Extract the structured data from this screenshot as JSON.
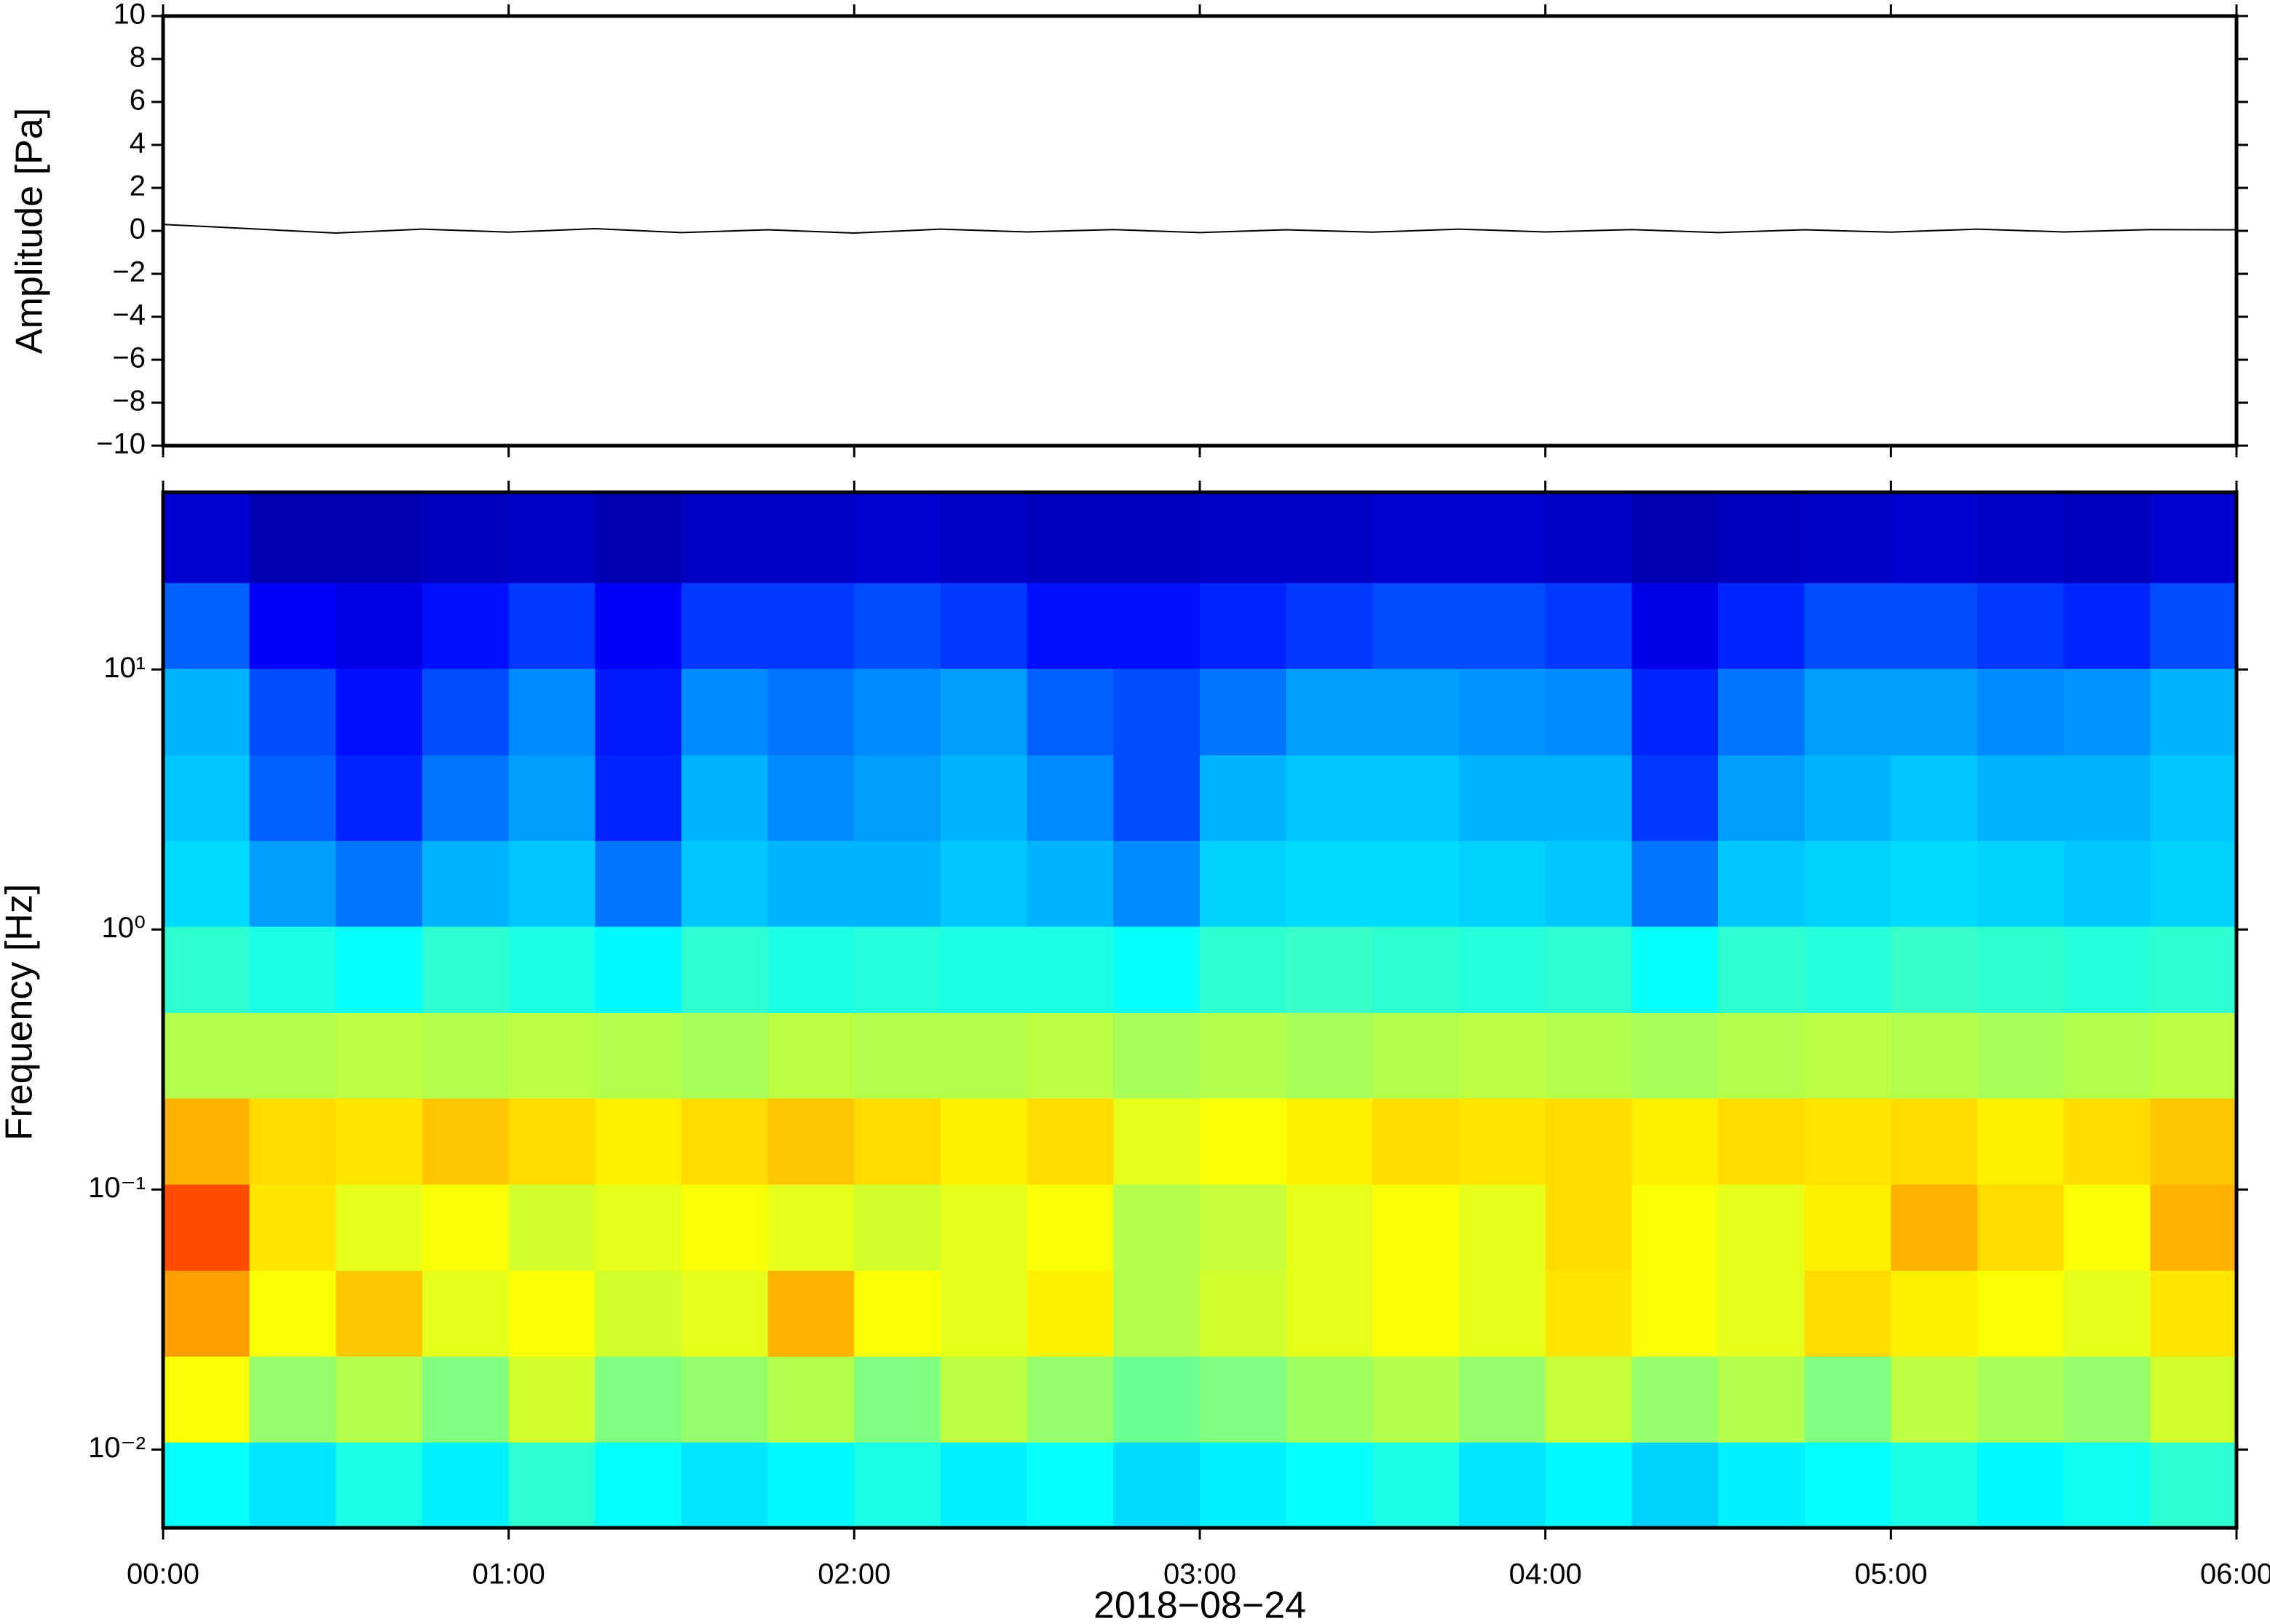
{
  "chart_data": [
    {
      "type": "line",
      "ylabel": "Amplitude [Pa]",
      "x": [
        0,
        0.25,
        0.5,
        0.75,
        1,
        1.25,
        1.5,
        1.75,
        2,
        2.25,
        2.5,
        2.75,
        3,
        3.25,
        3.5,
        3.75,
        4,
        4.25,
        4.5,
        4.75,
        5,
        5.25,
        5.5,
        5.75,
        6
      ],
      "series": [
        {
          "color": "#000000",
          "values": [
            0.3,
            0.1,
            -0.1,
            0.08,
            -0.06,
            0.1,
            -0.08,
            0.05,
            -0.1,
            0.08,
            -0.05,
            0.06,
            -0.08,
            0.05,
            -0.06,
            0.08,
            -0.05,
            0.06,
            -0.08,
            0.05,
            -0.06,
            0.08,
            -0.05,
            0.06,
            0.05
          ]
        }
      ],
      "xlim": [
        0,
        6
      ],
      "xticks": [
        {
          "value": 0,
          "label": "00:00"
        },
        {
          "value": 1,
          "label": "01:00"
        },
        {
          "value": 2,
          "label": "02:00"
        },
        {
          "value": 3,
          "label": "03:00"
        },
        {
          "value": 4,
          "label": "04:00"
        },
        {
          "value": 5,
          "label": "05:00"
        },
        {
          "value": 6,
          "label": "06:00"
        }
      ],
      "ylim": [
        -10,
        10
      ],
      "yticks": [
        {
          "value": -10,
          "label": "−10"
        },
        {
          "value": -8,
          "label": "−8"
        },
        {
          "value": -6,
          "label": "−6"
        },
        {
          "value": -4,
          "label": "−4"
        },
        {
          "value": -2,
          "label": "−2"
        },
        0,
        2,
        4,
        6,
        8,
        10
      ]
    },
    {
      "type": "heatmap",
      "ylabel": "Frequency [Hz]",
      "xlabel": "2018−08−24",
      "colormap": "jet",
      "log_y": true,
      "zlim": [
        0,
        1
      ],
      "xbins": [
        0,
        0.25,
        0.5,
        0.75,
        1,
        1.25,
        1.5,
        1.75,
        2,
        2.25,
        2.5,
        2.75,
        3,
        3.25,
        3.5,
        3.75,
        4,
        4.25,
        4.5,
        4.75,
        5,
        5.25,
        5.5,
        5.75,
        6
      ],
      "ybins": [
        0.005,
        0.0107,
        0.0229,
        0.049,
        0.105,
        0.225,
        0.48,
        1.03,
        2.2,
        4.7,
        10.1,
        21.6,
        48
      ],
      "z": [
        [
          0.38,
          0.35,
          0.4,
          0.36,
          0.42,
          0.38,
          0.35,
          0.37,
          0.4,
          0.36,
          0.38,
          0.34,
          0.36,
          0.38,
          0.4,
          0.35,
          0.37,
          0.33,
          0.36,
          0.38,
          0.4,
          0.37,
          0.39,
          0.42
        ],
        [
          0.62,
          0.52,
          0.55,
          0.5,
          0.58,
          0.5,
          0.52,
          0.55,
          0.5,
          0.56,
          0.52,
          0.48,
          0.5,
          0.53,
          0.55,
          0.52,
          0.57,
          0.52,
          0.55,
          0.5,
          0.56,
          0.54,
          0.52,
          0.58
        ],
        [
          0.72,
          0.62,
          0.68,
          0.6,
          0.62,
          0.58,
          0.6,
          0.7,
          0.62,
          0.6,
          0.64,
          0.55,
          0.58,
          0.6,
          0.62,
          0.6,
          0.65,
          0.62,
          0.6,
          0.66,
          0.64,
          0.62,
          0.6,
          0.65
        ],
        [
          0.8,
          0.65,
          0.6,
          0.62,
          0.58,
          0.6,
          0.62,
          0.6,
          0.58,
          0.6,
          0.62,
          0.55,
          0.57,
          0.6,
          0.62,
          0.6,
          0.66,
          0.62,
          0.6,
          0.64,
          0.7,
          0.66,
          0.62,
          0.7
        ],
        [
          0.7,
          0.66,
          0.65,
          0.68,
          0.66,
          0.64,
          0.66,
          0.68,
          0.66,
          0.64,
          0.66,
          0.6,
          0.62,
          0.64,
          0.66,
          0.65,
          0.66,
          0.64,
          0.66,
          0.65,
          0.66,
          0.64,
          0.66,
          0.68
        ],
        [
          0.55,
          0.55,
          0.56,
          0.55,
          0.56,
          0.55,
          0.54,
          0.56,
          0.55,
          0.55,
          0.56,
          0.54,
          0.55,
          0.54,
          0.55,
          0.56,
          0.55,
          0.54,
          0.55,
          0.56,
          0.55,
          0.54,
          0.55,
          0.56
        ],
        [
          0.42,
          0.4,
          0.38,
          0.42,
          0.4,
          0.37,
          0.42,
          0.4,
          0.41,
          0.4,
          0.4,
          0.38,
          0.42,
          0.43,
          0.42,
          0.41,
          0.42,
          0.38,
          0.42,
          0.41,
          0.43,
          0.42,
          0.41,
          0.42
        ],
        [
          0.34,
          0.28,
          0.24,
          0.3,
          0.32,
          0.24,
          0.32,
          0.3,
          0.3,
          0.32,
          0.3,
          0.26,
          0.33,
          0.34,
          0.34,
          0.33,
          0.32,
          0.24,
          0.32,
          0.33,
          0.34,
          0.33,
          0.32,
          0.33
        ],
        [
          0.32,
          0.22,
          0.16,
          0.24,
          0.28,
          0.16,
          0.3,
          0.26,
          0.28,
          0.3,
          0.26,
          0.2,
          0.3,
          0.32,
          0.32,
          0.3,
          0.3,
          0.18,
          0.28,
          0.3,
          0.32,
          0.3,
          0.3,
          0.32
        ],
        [
          0.3,
          0.2,
          0.14,
          0.2,
          0.26,
          0.15,
          0.26,
          0.24,
          0.26,
          0.28,
          0.22,
          0.2,
          0.24,
          0.28,
          0.28,
          0.27,
          0.26,
          0.16,
          0.24,
          0.28,
          0.28,
          0.26,
          0.27,
          0.3
        ],
        [
          0.22,
          0.12,
          0.1,
          0.14,
          0.18,
          0.12,
          0.18,
          0.18,
          0.2,
          0.18,
          0.14,
          0.14,
          0.16,
          0.18,
          0.2,
          0.2,
          0.18,
          0.1,
          0.16,
          0.2,
          0.2,
          0.18,
          0.16,
          0.2
        ],
        [
          0.08,
          0.05,
          0.05,
          0.06,
          0.07,
          0.05,
          0.07,
          0.07,
          0.08,
          0.07,
          0.06,
          0.06,
          0.07,
          0.07,
          0.08,
          0.08,
          0.07,
          0.05,
          0.06,
          0.07,
          0.08,
          0.07,
          0.06,
          0.08
        ]
      ],
      "xlim": [
        0,
        6
      ],
      "xticks": [
        {
          "value": 0,
          "label": "00:00"
        },
        {
          "value": 1,
          "label": "01:00"
        },
        {
          "value": 2,
          "label": "02:00"
        },
        {
          "value": 3,
          "label": "03:00"
        },
        {
          "value": 4,
          "label": "04:00"
        },
        {
          "value": 5,
          "label": "05:00"
        },
        {
          "value": 6,
          "label": "06:00"
        }
      ],
      "ylim": [
        0.005,
        48
      ],
      "yticks": [
        {
          "value": 0.01,
          "label": "10⁻²"
        },
        {
          "value": 0.1,
          "label": "10⁻¹"
        },
        {
          "value": 1,
          "label": "10⁰"
        },
        {
          "value": 10,
          "label": "10¹"
        }
      ]
    }
  ]
}
